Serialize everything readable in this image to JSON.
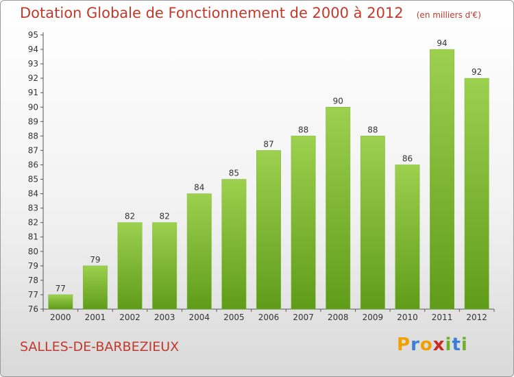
{
  "header": {
    "title": "Dotation Globale de Fonctionnement de 2000 à 2012",
    "unit": "(en milliers d'€)"
  },
  "footer": {
    "commune": "SALLES-DE-BARBEZIEUX",
    "logo": "Proxiti"
  },
  "chart_data": {
    "type": "bar",
    "title": "Dotation Globale de Fonctionnement de 2000 à 2012",
    "subtitle": "(en milliers d'€)",
    "xlabel": "",
    "ylabel": "",
    "categories": [
      "2000",
      "2001",
      "2002",
      "2003",
      "2004",
      "2005",
      "2006",
      "2007",
      "2008",
      "2009",
      "2010",
      "2011",
      "2012"
    ],
    "values": [
      77,
      79,
      82,
      82,
      84,
      85,
      87,
      88,
      90,
      88,
      86,
      94,
      92
    ],
    "ylim": [
      76,
      95
    ],
    "yticks": [
      76,
      77,
      78,
      79,
      80,
      81,
      82,
      83,
      84,
      85,
      86,
      87,
      88,
      89,
      90,
      91,
      92,
      93,
      94,
      95
    ],
    "grid": false,
    "bar_color": "#8cc63f",
    "legend": "none"
  }
}
